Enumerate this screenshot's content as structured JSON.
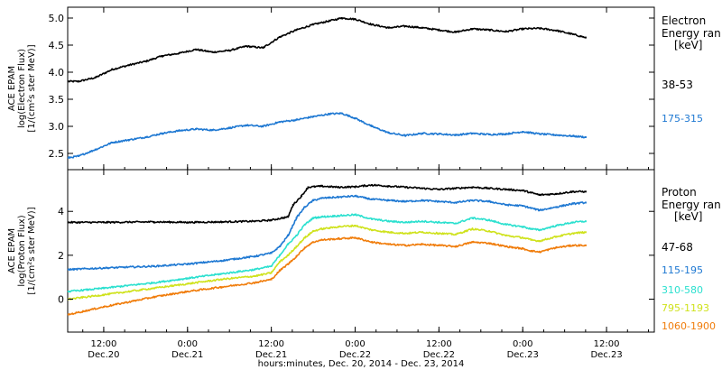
{
  "colors": {
    "black": "#000000",
    "blue": "#1e78d2",
    "cyan": "#2be0cf",
    "yellow": "#cfe21c",
    "orange": "#f07c0a",
    "axis": "#000000"
  },
  "xaxis": {
    "ticks": [
      {
        "t": 0.5,
        "time": "12:00",
        "date": "Dec.20"
      },
      {
        "t": 1.0,
        "time": "0:00",
        "date": "Dec.21"
      },
      {
        "t": 1.5,
        "time": "12:00",
        "date": "Dec.21"
      },
      {
        "t": 2.0,
        "time": "0:00",
        "date": "Dec.22"
      },
      {
        "t": 2.5,
        "time": "12:00",
        "date": "Dec.22"
      },
      {
        "t": 3.0,
        "time": "0:00",
        "date": "Dec.23"
      },
      {
        "t": 3.5,
        "time": "12:00",
        "date": "Dec.23"
      }
    ],
    "range": [
      0.285,
      3.785
    ],
    "label": "hours:minutes, Dec. 20, 2014 - Dec. 23, 2014"
  },
  "chart_data": [
    {
      "type": "scatter",
      "panel": "electron",
      "ylabel_lines": [
        "ACE EPAM",
        "log(Electron Flux)",
        "[1/(cm²s ster MeV)]"
      ],
      "ylim": [
        2.2,
        5.2
      ],
      "yticks": [
        "2.5",
        "3.0",
        "3.5",
        "4.0",
        "4.5",
        "5.0"
      ],
      "ytick_values": [
        2.5,
        3.0,
        3.5,
        4.0,
        4.5,
        5.0
      ],
      "legend": {
        "title_lines": [
          "Electron",
          "Energy ran",
          "[keV]"
        ],
        "entries": [
          "38-53",
          "175-315"
        ]
      },
      "series": [
        {
          "name": "38-53",
          "color": "black",
          "points": [
            [
              0.29,
              3.83
            ],
            [
              0.35,
              3.83
            ],
            [
              0.45,
              3.9
            ],
            [
              0.55,
              4.05
            ],
            [
              0.65,
              4.13
            ],
            [
              0.75,
              4.2
            ],
            [
              0.85,
              4.3
            ],
            [
              0.95,
              4.35
            ],
            [
              1.05,
              4.42
            ],
            [
              1.15,
              4.37
            ],
            [
              1.25,
              4.4
            ],
            [
              1.35,
              4.48
            ],
            [
              1.45,
              4.45
            ],
            [
              1.55,
              4.65
            ],
            [
              1.65,
              4.78
            ],
            [
              1.75,
              4.88
            ],
            [
              1.85,
              4.95
            ],
            [
              1.92,
              5.0
            ],
            [
              2.0,
              4.98
            ],
            [
              2.1,
              4.88
            ],
            [
              2.2,
              4.82
            ],
            [
              2.3,
              4.85
            ],
            [
              2.4,
              4.82
            ],
            [
              2.5,
              4.78
            ],
            [
              2.6,
              4.74
            ],
            [
              2.7,
              4.8
            ],
            [
              2.8,
              4.78
            ],
            [
              2.9,
              4.75
            ],
            [
              3.0,
              4.8
            ],
            [
              3.1,
              4.81
            ],
            [
              3.2,
              4.77
            ],
            [
              3.3,
              4.7
            ],
            [
              3.375,
              4.64
            ]
          ]
        },
        {
          "name": "175-315",
          "color": "blue",
          "points": [
            [
              0.29,
              2.42
            ],
            [
              0.35,
              2.45
            ],
            [
              0.45,
              2.57
            ],
            [
              0.55,
              2.7
            ],
            [
              0.65,
              2.75
            ],
            [
              0.75,
              2.8
            ],
            [
              0.85,
              2.87
            ],
            [
              0.95,
              2.92
            ],
            [
              1.05,
              2.95
            ],
            [
              1.15,
              2.93
            ],
            [
              1.25,
              2.97
            ],
            [
              1.35,
              3.02
            ],
            [
              1.45,
              3.0
            ],
            [
              1.55,
              3.08
            ],
            [
              1.65,
              3.12
            ],
            [
              1.75,
              3.18
            ],
            [
              1.85,
              3.23
            ],
            [
              1.92,
              3.24
            ],
            [
              2.0,
              3.15
            ],
            [
              2.1,
              3.0
            ],
            [
              2.2,
              2.88
            ],
            [
              2.3,
              2.83
            ],
            [
              2.4,
              2.87
            ],
            [
              2.5,
              2.86
            ],
            [
              2.6,
              2.84
            ],
            [
              2.7,
              2.87
            ],
            [
              2.8,
              2.85
            ],
            [
              2.9,
              2.86
            ],
            [
              3.0,
              2.9
            ],
            [
              3.1,
              2.86
            ],
            [
              3.2,
              2.84
            ],
            [
              3.3,
              2.82
            ],
            [
              3.375,
              2.8
            ]
          ]
        }
      ]
    },
    {
      "type": "scatter",
      "panel": "proton",
      "ylabel_lines": [
        "ACE EPAM",
        "log(Proton Flux)",
        "[1/(cm²s ster MeV)]"
      ],
      "ylim": [
        -1.5,
        5.9
      ],
      "yticks": [
        "0",
        "2",
        "4"
      ],
      "ytick_values": [
        0,
        2,
        4
      ],
      "legend": {
        "title_lines": [
          "Proton",
          "Energy ran",
          "[keV]"
        ],
        "entries": [
          "47-68",
          "115-195",
          "310-580",
          "795-1193",
          "1060-1900"
        ]
      },
      "series": [
        {
          "name": "47-68",
          "color": "black",
          "points": [
            [
              0.29,
              3.5
            ],
            [
              0.5,
              3.5
            ],
            [
              0.8,
              3.52
            ],
            [
              1.0,
              3.5
            ],
            [
              1.2,
              3.52
            ],
            [
              1.4,
              3.55
            ],
            [
              1.5,
              3.6
            ],
            [
              1.6,
              3.75
            ],
            [
              1.63,
              4.3
            ],
            [
              1.68,
              4.7
            ],
            [
              1.72,
              5.1
            ],
            [
              1.8,
              5.15
            ],
            [
              1.9,
              5.1
            ],
            [
              2.0,
              5.12
            ],
            [
              2.1,
              5.2
            ],
            [
              2.2,
              5.15
            ],
            [
              2.3,
              5.1
            ],
            [
              2.4,
              5.05
            ],
            [
              2.5,
              5.0
            ],
            [
              2.6,
              5.05
            ],
            [
              2.7,
              5.1
            ],
            [
              2.8,
              5.05
            ],
            [
              2.9,
              5.0
            ],
            [
              3.0,
              4.95
            ],
            [
              3.05,
              4.85
            ],
            [
              3.1,
              4.75
            ],
            [
              3.2,
              4.8
            ],
            [
              3.3,
              4.9
            ],
            [
              3.375,
              4.9
            ]
          ]
        },
        {
          "name": "115-195",
          "color": "blue",
          "points": [
            [
              0.29,
              1.35
            ],
            [
              0.5,
              1.42
            ],
            [
              0.8,
              1.5
            ],
            [
              1.0,
              1.6
            ],
            [
              1.2,
              1.75
            ],
            [
              1.4,
              1.95
            ],
            [
              1.5,
              2.1
            ],
            [
              1.55,
              2.4
            ],
            [
              1.6,
              2.9
            ],
            [
              1.65,
              3.7
            ],
            [
              1.7,
              4.2
            ],
            [
              1.75,
              4.5
            ],
            [
              1.8,
              4.6
            ],
            [
              1.9,
              4.65
            ],
            [
              2.0,
              4.7
            ],
            [
              2.1,
              4.55
            ],
            [
              2.2,
              4.5
            ],
            [
              2.3,
              4.45
            ],
            [
              2.4,
              4.5
            ],
            [
              2.5,
              4.45
            ],
            [
              2.6,
              4.4
            ],
            [
              2.7,
              4.5
            ],
            [
              2.8,
              4.45
            ],
            [
              2.9,
              4.3
            ],
            [
              3.0,
              4.25
            ],
            [
              3.05,
              4.15
            ],
            [
              3.1,
              4.05
            ],
            [
              3.2,
              4.2
            ],
            [
              3.3,
              4.35
            ],
            [
              3.375,
              4.4
            ]
          ]
        },
        {
          "name": "310-580",
          "color": "cyan",
          "points": [
            [
              0.29,
              0.35
            ],
            [
              0.5,
              0.5
            ],
            [
              0.8,
              0.75
            ],
            [
              1.0,
              0.95
            ],
            [
              1.2,
              1.15
            ],
            [
              1.4,
              1.35
            ],
            [
              1.5,
              1.5
            ],
            [
              1.55,
              2.0
            ],
            [
              1.6,
              2.5
            ],
            [
              1.65,
              2.9
            ],
            [
              1.7,
              3.4
            ],
            [
              1.75,
              3.7
            ],
            [
              1.8,
              3.75
            ],
            [
              1.9,
              3.8
            ],
            [
              2.0,
              3.85
            ],
            [
              2.1,
              3.65
            ],
            [
              2.2,
              3.55
            ],
            [
              2.3,
              3.5
            ],
            [
              2.4,
              3.55
            ],
            [
              2.5,
              3.5
            ],
            [
              2.6,
              3.45
            ],
            [
              2.7,
              3.7
            ],
            [
              2.8,
              3.6
            ],
            [
              2.9,
              3.4
            ],
            [
              3.0,
              3.3
            ],
            [
              3.05,
              3.2
            ],
            [
              3.1,
              3.15
            ],
            [
              3.2,
              3.35
            ],
            [
              3.3,
              3.5
            ],
            [
              3.375,
              3.55
            ]
          ]
        },
        {
          "name": "795-1193",
          "color": "yellow",
          "points": [
            [
              0.29,
              0.0
            ],
            [
              0.5,
              0.2
            ],
            [
              0.8,
              0.5
            ],
            [
              1.0,
              0.7
            ],
            [
              1.2,
              0.9
            ],
            [
              1.4,
              1.05
            ],
            [
              1.5,
              1.2
            ],
            [
              1.55,
              1.7
            ],
            [
              1.6,
              2.0
            ],
            [
              1.65,
              2.4
            ],
            [
              1.7,
              2.8
            ],
            [
              1.75,
              3.1
            ],
            [
              1.8,
              3.2
            ],
            [
              1.9,
              3.3
            ],
            [
              2.0,
              3.35
            ],
            [
              2.1,
              3.15
            ],
            [
              2.2,
              3.05
            ],
            [
              2.3,
              3.0
            ],
            [
              2.4,
              3.05
            ],
            [
              2.5,
              3.0
            ],
            [
              2.6,
              2.95
            ],
            [
              2.7,
              3.2
            ],
            [
              2.8,
              3.1
            ],
            [
              2.9,
              2.9
            ],
            [
              3.0,
              2.8
            ],
            [
              3.05,
              2.7
            ],
            [
              3.1,
              2.65
            ],
            [
              3.2,
              2.85
            ],
            [
              3.3,
              3.0
            ],
            [
              3.375,
              3.05
            ]
          ]
        },
        {
          "name": "1060-1900",
          "color": "orange",
          "points": [
            [
              0.29,
              -0.7
            ],
            [
              0.5,
              -0.35
            ],
            [
              0.8,
              0.1
            ],
            [
              1.0,
              0.35
            ],
            [
              1.2,
              0.55
            ],
            [
              1.4,
              0.75
            ],
            [
              1.5,
              0.9
            ],
            [
              1.55,
              1.3
            ],
            [
              1.6,
              1.6
            ],
            [
              1.65,
              1.95
            ],
            [
              1.7,
              2.35
            ],
            [
              1.75,
              2.6
            ],
            [
              1.8,
              2.7
            ],
            [
              1.9,
              2.75
            ],
            [
              2.0,
              2.8
            ],
            [
              2.1,
              2.6
            ],
            [
              2.2,
              2.5
            ],
            [
              2.3,
              2.45
            ],
            [
              2.4,
              2.5
            ],
            [
              2.5,
              2.45
            ],
            [
              2.6,
              2.4
            ],
            [
              2.7,
              2.6
            ],
            [
              2.8,
              2.55
            ],
            [
              2.9,
              2.4
            ],
            [
              3.0,
              2.3
            ],
            [
              3.05,
              2.2
            ],
            [
              3.1,
              2.15
            ],
            [
              3.2,
              2.35
            ],
            [
              3.3,
              2.45
            ],
            [
              3.375,
              2.45
            ]
          ]
        }
      ]
    }
  ]
}
